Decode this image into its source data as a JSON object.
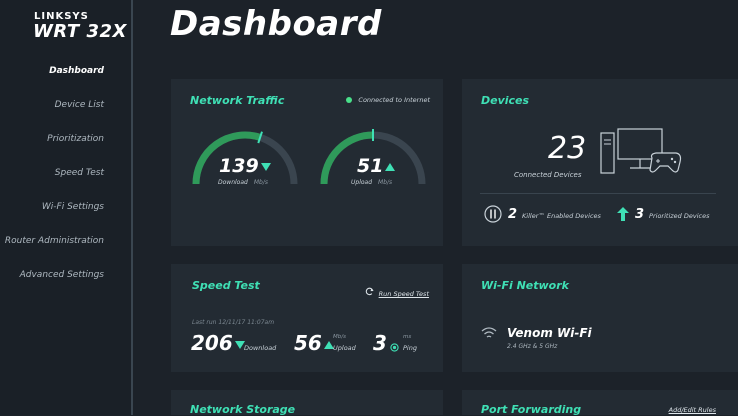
{
  "brand": {
    "name": "LINKSYS",
    "model": "WRT 32X"
  },
  "page_title": "Dashboard",
  "sidebar": {
    "items": [
      {
        "label": "Dashboard",
        "active": true
      },
      {
        "label": "Device List"
      },
      {
        "label": "Prioritization"
      },
      {
        "label": "Speed Test"
      },
      {
        "label": "Wi-Fi Settings"
      },
      {
        "label": "Router Administration"
      },
      {
        "label": "Advanced Settings"
      }
    ]
  },
  "network_traffic": {
    "title": "Network Traffic",
    "status": "Connected to Internet",
    "download": {
      "value": "139",
      "label": "Download",
      "unit": "Mb/s",
      "level": 0.6
    },
    "upload": {
      "value": "51",
      "label": "Upload",
      "unit": "Mb/s",
      "level": 0.5
    }
  },
  "devices": {
    "title": "Devices",
    "connected_count": "23",
    "connected_label": "Connected Devices",
    "killer_count": "2",
    "killer_label": "Killer™ Enabled Devices",
    "prioritized_count": "3",
    "prioritized_label": "Prioritized Devices"
  },
  "speed_test": {
    "title": "Speed Test",
    "run_label": "Run Speed Test",
    "last_run": "Last run 12/11/17 11:07am",
    "download": {
      "value": "206",
      "label": "Download"
    },
    "upload": {
      "value": "56",
      "label": "Upload",
      "unit": "Mb/s"
    },
    "ping": {
      "value": "3",
      "label": "Ping",
      "unit": "ms"
    }
  },
  "wifi_network": {
    "title": "Wi-Fi Network",
    "name": "Venom Wi-Fi",
    "bands": "2.4 GHz & 5 GHz"
  },
  "network_storage": {
    "title": "Network Storage"
  },
  "port_forwarding": {
    "title": "Port Forwarding",
    "action": "Add/Edit Rules"
  },
  "colors": {
    "accent": "#3fe0b5",
    "status_dot": "#49e08a",
    "background": "#1c2229",
    "card": "#232b33"
  }
}
